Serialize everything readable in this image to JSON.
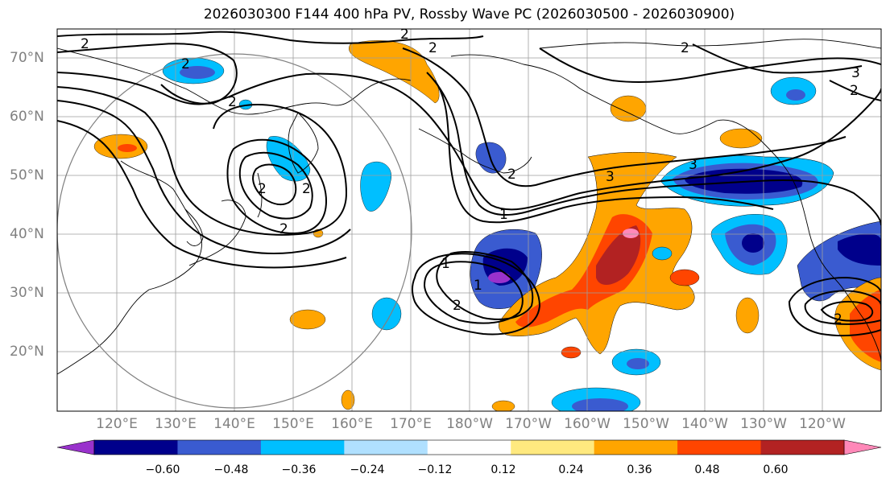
{
  "title": "2026030300 F144 400 hPa PV, Rossby Wave PC (2026030500 - 2026030900)",
  "lat_labels": [
    "70°N",
    "60°N",
    "50°N",
    "40°N",
    "30°N",
    "20°N"
  ],
  "lon_labels": [
    "120°E",
    "130°E",
    "140°E",
    "150°E",
    "160°E",
    "170°E",
    "180°W",
    "170°W",
    "160°W",
    "150°W",
    "140°W",
    "130°W",
    "120°W"
  ],
  "colorbar": {
    "tick_labels": [
      "−0.60",
      "−0.48",
      "−0.36",
      "−0.24",
      "−0.12",
      "0.12",
      "0.24",
      "0.36",
      "0.48",
      "0.60"
    ],
    "colors": [
      "#9932cc",
      "#00008b",
      "#3a5bd0",
      "#00bfff",
      "#b0e0ff",
      "#ffffff",
      "#ffe97f",
      "#ffa500",
      "#ff4500",
      "#b22222",
      "#ff88b8"
    ]
  },
  "contour_labels": [
    "2",
    "2",
    "2",
    "2",
    "2",
    "2",
    "2",
    "2",
    "2",
    "2",
    "1",
    "1",
    "1",
    "2",
    "3",
    "3",
    "3",
    "2",
    "2"
  ]
}
